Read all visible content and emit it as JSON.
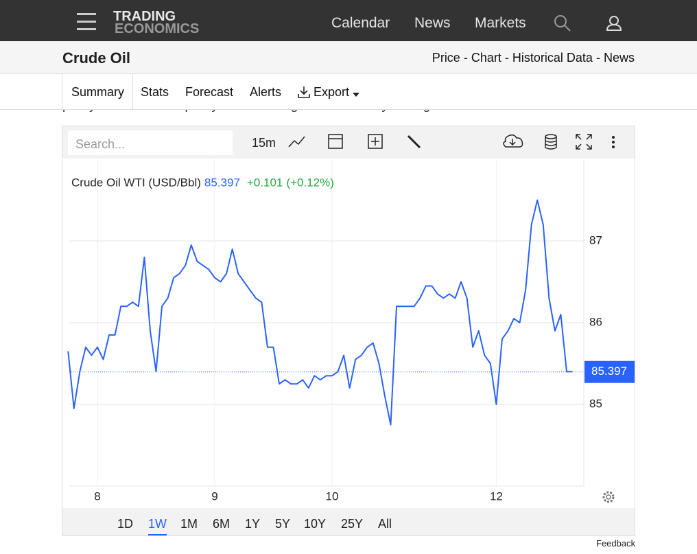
{
  "nav": {
    "logo_top": "TRADING",
    "logo_bottom": "ECONOMICS",
    "links": [
      "Calendar",
      "News",
      "Markets"
    ]
  },
  "header": {
    "title": "Crude Oil",
    "links": [
      "Price",
      "Chart",
      "Historical Data",
      "News"
    ],
    "separator": "-"
  },
  "tabs": {
    "items": [
      "Summary",
      "Stats",
      "Forecast",
      "Alerts",
      "Export"
    ],
    "active_index": 0
  },
  "background_text": "policymakers left the policy rate unchanged on Thursday but signaled readiness to cut rates soon.",
  "toolbar": {
    "search_placeholder": "Search...",
    "interval": "15m"
  },
  "chart_data": {
    "type": "line",
    "categories": [
      null,
      null,
      null,
      null,
      null,
      "8",
      null,
      null,
      null,
      null,
      null,
      null,
      null,
      null,
      null,
      null,
      null,
      null,
      null,
      null,
      null,
      null,
      null,
      null,
      null,
      "9",
      null,
      null,
      null,
      null,
      null,
      null,
      null,
      null,
      null,
      null,
      null,
      null,
      null,
      null,
      null,
      null,
      null,
      null,
      null,
      "10",
      null,
      null,
      null,
      null,
      null,
      null,
      null,
      null,
      null,
      null,
      null,
      null,
      null,
      null,
      null,
      null,
      null,
      null,
      null,
      null,
      null,
      null,
      null,
      null,
      null,
      null,
      null,
      "12",
      null,
      null,
      null,
      null,
      null,
      null,
      null,
      null,
      null,
      null,
      null,
      null,
      null
    ],
    "series": [
      {
        "name": "Crude Oil WTI (USD/Bbl)",
        "color": "#2962ff",
        "values": [
          85.65,
          84.95,
          85.4,
          85.7,
          85.6,
          85.7,
          85.55,
          85.85,
          85.85,
          86.2,
          86.2,
          86.25,
          86.2,
          86.8,
          85.9,
          85.4,
          86.2,
          86.3,
          86.55,
          86.6,
          86.7,
          86.95,
          86.75,
          86.7,
          86.65,
          86.55,
          86.5,
          86.6,
          86.9,
          86.6,
          86.5,
          86.4,
          86.3,
          86.25,
          85.7,
          85.7,
          85.25,
          85.3,
          85.25,
          85.25,
          85.3,
          85.2,
          85.35,
          85.3,
          85.35,
          85.35,
          85.4,
          85.6,
          85.2,
          85.55,
          85.6,
          85.7,
          85.75,
          85.5,
          85.1,
          84.75,
          86.2,
          86.2,
          86.2,
          86.2,
          86.3,
          86.45,
          86.45,
          86.35,
          86.3,
          86.35,
          86.3,
          86.5,
          86.3,
          85.7,
          85.9,
          85.6,
          85.5,
          85.0,
          85.8,
          85.9,
          86.05,
          86.0,
          86.4,
          87.2,
          87.5,
          87.2,
          86.3,
          85.9,
          86.1,
          85.4,
          85.4
        ]
      }
    ],
    "last_value": 85.397,
    "change": "+0.101",
    "change_percent": "(+0.12%)",
    "change_color": "#22ab3c",
    "ylim": [
      84,
      88
    ],
    "yticks": [
      85,
      86,
      87
    ],
    "grid": true
  },
  "ranges": {
    "items": [
      "1D",
      "1W",
      "1M",
      "6M",
      "1Y",
      "5Y",
      "10Y",
      "25Y",
      "All"
    ],
    "active_index": 1
  },
  "feedback": "Feedback"
}
